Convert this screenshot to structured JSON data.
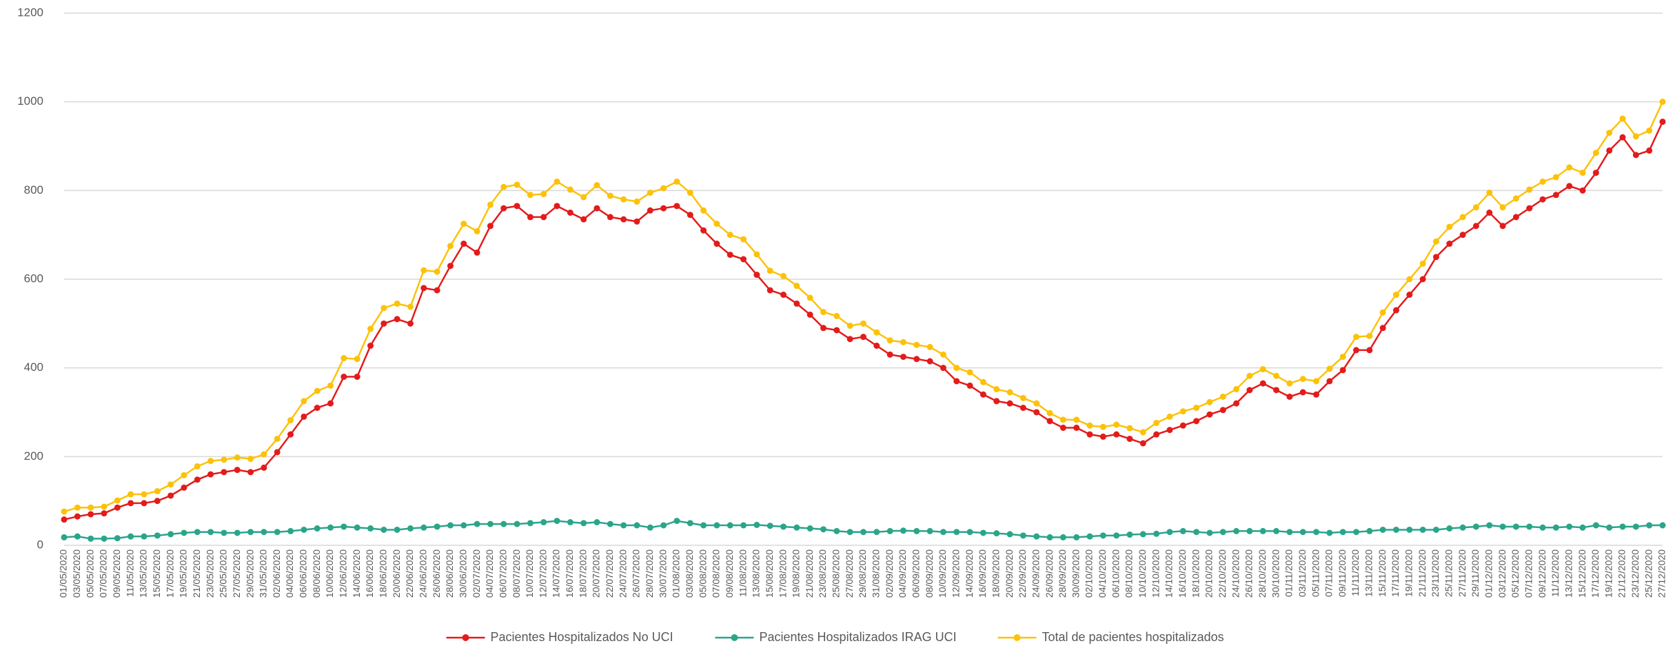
{
  "chart_data": {
    "type": "line",
    "categories": [
      "01/05/2020",
      "03/05/2020",
      "05/05/2020",
      "07/05/2020",
      "09/05/2020",
      "11/05/2020",
      "13/05/2020",
      "15/05/2020",
      "17/05/2020",
      "19/05/2020",
      "21/05/2020",
      "23/05/2020",
      "25/05/2020",
      "27/05/2020",
      "29/05/2020",
      "31/05/2020",
      "02/06/2020",
      "04/06/2020",
      "06/06/2020",
      "08/06/2020",
      "10/06/2020",
      "12/06/2020",
      "14/06/2020",
      "16/06/2020",
      "18/06/2020",
      "20/06/2020",
      "22/06/2020",
      "24/06/2020",
      "26/06/2020",
      "28/06/2020",
      "30/06/2020",
      "02/07/2020",
      "04/07/2020",
      "06/07/2020",
      "08/07/2020",
      "10/07/2020",
      "12/07/2020",
      "14/07/2020",
      "16/07/2020",
      "18/07/2020",
      "20/07/2020",
      "22/07/2020",
      "24/07/2020",
      "26/07/2020",
      "28/07/2020",
      "30/07/2020",
      "01/08/2020",
      "03/08/2020",
      "05/08/2020",
      "07/08/2020",
      "09/08/2020",
      "11/08/2020",
      "13/08/2020",
      "15/08/2020",
      "17/08/2020",
      "19/08/2020",
      "21/08/2020",
      "23/08/2020",
      "25/08/2020",
      "27/08/2020",
      "29/08/2020",
      "31/08/2020",
      "02/09/2020",
      "04/09/2020",
      "06/09/2020",
      "08/09/2020",
      "10/09/2020",
      "12/09/2020",
      "14/09/2020",
      "16/09/2020",
      "18/09/2020",
      "20/09/2020",
      "22/09/2020",
      "24/09/2020",
      "26/09/2020",
      "28/09/2020",
      "30/09/2020",
      "02/10/2020",
      "04/10/2020",
      "06/10/2020",
      "08/10/2020",
      "10/10/2020",
      "12/10/2020",
      "14/10/2020",
      "16/10/2020",
      "18/10/2020",
      "20/10/2020",
      "22/10/2020",
      "24/10/2020",
      "26/10/2020",
      "28/10/2020",
      "30/10/2020",
      "01/11/2020",
      "03/11/2020",
      "05/11/2020",
      "07/11/2020",
      "09/11/2020",
      "11/11/2020",
      "13/11/2020",
      "15/11/2020",
      "17/11/2020",
      "19/11/2020",
      "21/11/2020",
      "23/11/2020",
      "25/11/2020",
      "27/11/2020",
      "29/11/2020",
      "01/12/2020",
      "03/12/2020",
      "05/12/2020",
      "07/12/2020",
      "09/12/2020",
      "11/12/2020",
      "13/12/2020",
      "15/12/2020",
      "17/12/2020",
      "19/12/2020",
      "21/12/2020",
      "23/12/2020",
      "25/12/2020",
      "27/12/2020"
    ],
    "series": [
      {
        "name": "Pacientes Hospitalizados No UCI",
        "color": "#e31b1b",
        "values": [
          58,
          65,
          70,
          72,
          85,
          95,
          95,
          100,
          112,
          130,
          148,
          160,
          165,
          170,
          165,
          175,
          210,
          250,
          290,
          310,
          320,
          380,
          380,
          450,
          500,
          510,
          500,
          580,
          575,
          630,
          680,
          660,
          720,
          760,
          765,
          740,
          740,
          765,
          750,
          735,
          760,
          740,
          735,
          730,
          755,
          760,
          765,
          745,
          710,
          680,
          655,
          645,
          610,
          575,
          565,
          545,
          520,
          490,
          485,
          465,
          470,
          450,
          430,
          425,
          420,
          415,
          400,
          370,
          360,
          340,
          325,
          320,
          310,
          300,
          280,
          265,
          265,
          250,
          245,
          250,
          240,
          230,
          250,
          260,
          270,
          280,
          295,
          305,
          320,
          350,
          365,
          350,
          335,
          345,
          340,
          370,
          395,
          440,
          440,
          490,
          530,
          565,
          600,
          650,
          680,
          700,
          720,
          750,
          720,
          740,
          760,
          780,
          790,
          810,
          800,
          840,
          890,
          920,
          880,
          890,
          955
        ]
      },
      {
        "name": "Pacientes Hospitalizados IRAG UCI",
        "color": "#2aa58a",
        "values": [
          18,
          20,
          15,
          15,
          16,
          20,
          20,
          22,
          25,
          28,
          30,
          30,
          28,
          28,
          30,
          30,
          30,
          32,
          35,
          38,
          40,
          42,
          40,
          38,
          35,
          35,
          38,
          40,
          42,
          45,
          45,
          48,
          48,
          48,
          48,
          50,
          52,
          55,
          52,
          50,
          52,
          48,
          45,
          45,
          40,
          45,
          55,
          50,
          45,
          45,
          45,
          45,
          46,
          44,
          42,
          40,
          38,
          36,
          32,
          30,
          30,
          30,
          32,
          33,
          32,
          32,
          30,
          30,
          30,
          28,
          27,
          25,
          22,
          20,
          18,
          18,
          18,
          20,
          22,
          22,
          24,
          25,
          26,
          30,
          32,
          30,
          28,
          30,
          32,
          32,
          32,
          32,
          30,
          30,
          30,
          28,
          30,
          30,
          32,
          35,
          35,
          35,
          35,
          35,
          38,
          40,
          42,
          45,
          42,
          42,
          42,
          40,
          40,
          42,
          40,
          45,
          40,
          42,
          42,
          45,
          45
        ]
      },
      {
        "name": "Total de pacientes hospitalizados",
        "color": "#fcc20a",
        "values": [
          76,
          85,
          85,
          87,
          101,
          115,
          115,
          122,
          137,
          158,
          178,
          190,
          193,
          198,
          195,
          205,
          240,
          282,
          325,
          348,
          360,
          422,
          420,
          488,
          535,
          545,
          538,
          620,
          617,
          675,
          725,
          708,
          768,
          808,
          813,
          790,
          792,
          820,
          802,
          785,
          812,
          788,
          780,
          775,
          795,
          805,
          820,
          795,
          755,
          725,
          700,
          690,
          656,
          619,
          607,
          585,
          558,
          526,
          517,
          495,
          500,
          480,
          462,
          458,
          452,
          447,
          430,
          400,
          390,
          368,
          352,
          345,
          332,
          320,
          298,
          283,
          283,
          270,
          267,
          272,
          264,
          255,
          276,
          290,
          302,
          310,
          323,
          335,
          352,
          382,
          397,
          382,
          365,
          375,
          370,
          398,
          425,
          470,
          472,
          525,
          565,
          600,
          635,
          685,
          718,
          740,
          762,
          795,
          762,
          782,
          802,
          820,
          830,
          852,
          840,
          885,
          930,
          962,
          922,
          935,
          1000
        ]
      }
    ],
    "ylim": [
      0,
      1200
    ],
    "yticks": [
      0,
      200,
      400,
      600,
      800,
      1000,
      1200
    ],
    "grid": true,
    "legend": "bottom"
  }
}
